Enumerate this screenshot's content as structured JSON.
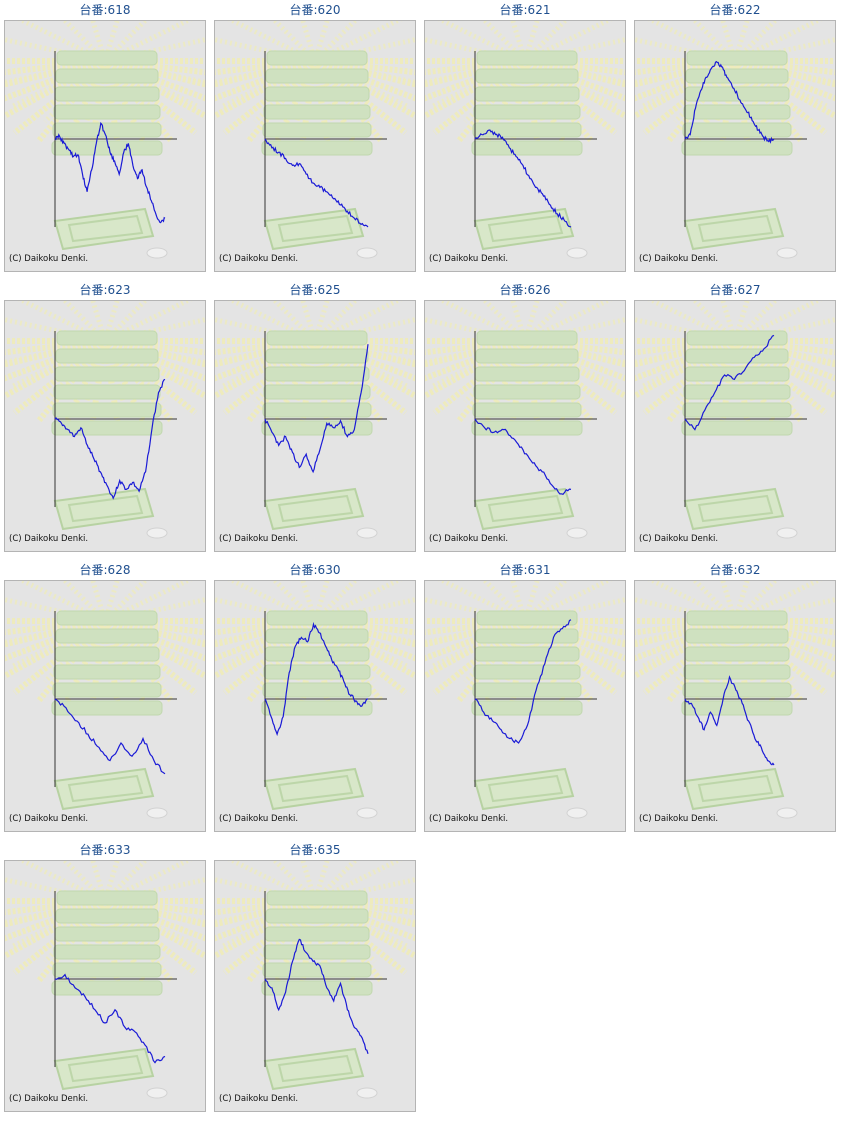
{
  "copyright": "(C) Daikoku Denki.",
  "title_prefix": "台番:",
  "colors": {
    "title": "#1f4f8f",
    "line": "#1a1ad6",
    "axis": "#333333",
    "panel": "#e4e4e4",
    "watermark_green": "#c8e0b4",
    "watermark_ray": "#f2eeb0"
  },
  "watermark_icon": "pachislot-machine-icon",
  "chart_data": [
    {
      "type": "line",
      "title": "台番:618",
      "series": [
        {
          "values": [
            0,
            0.03,
            -0.05,
            -0.12,
            -0.2,
            -0.18,
            -0.4,
            -0.6,
            -0.35,
            -0.05,
            0.18,
            0.05,
            -0.15,
            -0.25,
            -0.4,
            -0.15,
            -0.05,
            -0.3,
            -0.45,
            -0.35,
            -0.55,
            -0.7,
            -0.85,
            -0.95,
            -0.9
          ]
        }
      ]
    },
    {
      "type": "line",
      "title": "台番:620",
      "series": [
        {
          "values": [
            0,
            -0.1,
            -0.15,
            -0.22,
            -0.3,
            -0.28,
            -0.4,
            -0.5,
            -0.55,
            -0.6,
            -0.68,
            -0.75,
            -0.82,
            -0.9,
            -0.97,
            -1.0
          ]
        }
      ]
    },
    {
      "type": "line",
      "title": "台番:621",
      "series": [
        {
          "values": [
            0,
            0.05,
            0.1,
            0.05,
            0.02,
            -0.1,
            -0.2,
            -0.3,
            -0.45,
            -0.55,
            -0.65,
            -0.75,
            -0.85,
            -0.92,
            -1.0
          ]
        }
      ]
    },
    {
      "type": "line",
      "title": "台番:622",
      "series": [
        {
          "values": [
            0,
            0.05,
            0.35,
            0.55,
            0.7,
            0.8,
            0.88,
            0.82,
            0.7,
            0.6,
            0.5,
            0.4,
            0.3,
            0.2,
            0.1,
            0.02,
            -0.03,
            0.0
          ]
        }
      ]
    },
    {
      "type": "line",
      "title": "台番:623",
      "series": [
        {
          "values": [
            0,
            -0.05,
            -0.12,
            -0.2,
            -0.1,
            -0.3,
            -0.45,
            -0.6,
            -0.75,
            -0.9,
            -0.7,
            -0.8,
            -0.72,
            -0.82,
            -0.6,
            -0.1,
            0.3,
            0.45
          ]
        }
      ]
    },
    {
      "type": "line",
      "title": "台番:625",
      "series": [
        {
          "values": [
            0,
            -0.15,
            -0.3,
            -0.2,
            -0.38,
            -0.55,
            -0.4,
            -0.6,
            -0.35,
            -0.05,
            -0.1,
            -0.02,
            -0.2,
            -0.12,
            0.3,
            0.85
          ]
        }
      ]
    },
    {
      "type": "line",
      "title": "台番:626",
      "series": [
        {
          "values": [
            0,
            -0.1,
            -0.15,
            -0.12,
            -0.22,
            -0.35,
            -0.5,
            -0.6,
            -0.75,
            -0.85,
            -0.8
          ]
        }
      ]
    },
    {
      "type": "line",
      "title": "台番:627",
      "series": [
        {
          "values": [
            0,
            -0.12,
            0.1,
            0.3,
            0.5,
            0.45,
            0.55,
            0.7,
            0.8,
            0.95
          ]
        }
      ]
    },
    {
      "type": "line",
      "title": "台番:628",
      "series": [
        {
          "values": [
            0,
            -0.1,
            -0.25,
            -0.4,
            -0.55,
            -0.7,
            -0.5,
            -0.65,
            -0.45,
            -0.7,
            -0.85
          ]
        }
      ]
    },
    {
      "type": "line",
      "title": "台番:630",
      "series": [
        {
          "values": [
            0,
            -0.2,
            -0.4,
            -0.2,
            0.3,
            0.6,
            0.7,
            0.65,
            0.85,
            0.75,
            0.6,
            0.45,
            0.35,
            0.2,
            0.05,
            -0.02,
            -0.08,
            0.0
          ]
        }
      ]
    },
    {
      "type": "line",
      "title": "台番:631",
      "series": [
        {
          "values": [
            0,
            -0.15,
            -0.25,
            -0.35,
            -0.45,
            -0.5,
            -0.3,
            0.1,
            0.4,
            0.7,
            0.8,
            0.9
          ]
        }
      ]
    },
    {
      "type": "line",
      "title": "台番:632",
      "series": [
        {
          "values": [
            0,
            -0.05,
            -0.2,
            -0.35,
            -0.15,
            -0.3,
            0.0,
            0.25,
            0.1,
            -0.05,
            -0.25,
            -0.45,
            -0.55,
            -0.7,
            -0.75
          ]
        }
      ]
    },
    {
      "type": "line",
      "title": "台番:633",
      "series": [
        {
          "values": [
            0,
            0.05,
            -0.1,
            -0.2,
            -0.35,
            -0.5,
            -0.35,
            -0.55,
            -0.6,
            -0.75,
            -0.95,
            -0.88
          ]
        }
      ]
    },
    {
      "type": "line",
      "title": "台番:635",
      "series": [
        {
          "values": [
            0,
            -0.1,
            -0.35,
            -0.15,
            0.2,
            0.45,
            0.3,
            0.2,
            0.15,
            -0.1,
            -0.25,
            -0.05,
            -0.35,
            -0.55,
            -0.65,
            -0.85
          ]
        }
      ]
    }
  ]
}
